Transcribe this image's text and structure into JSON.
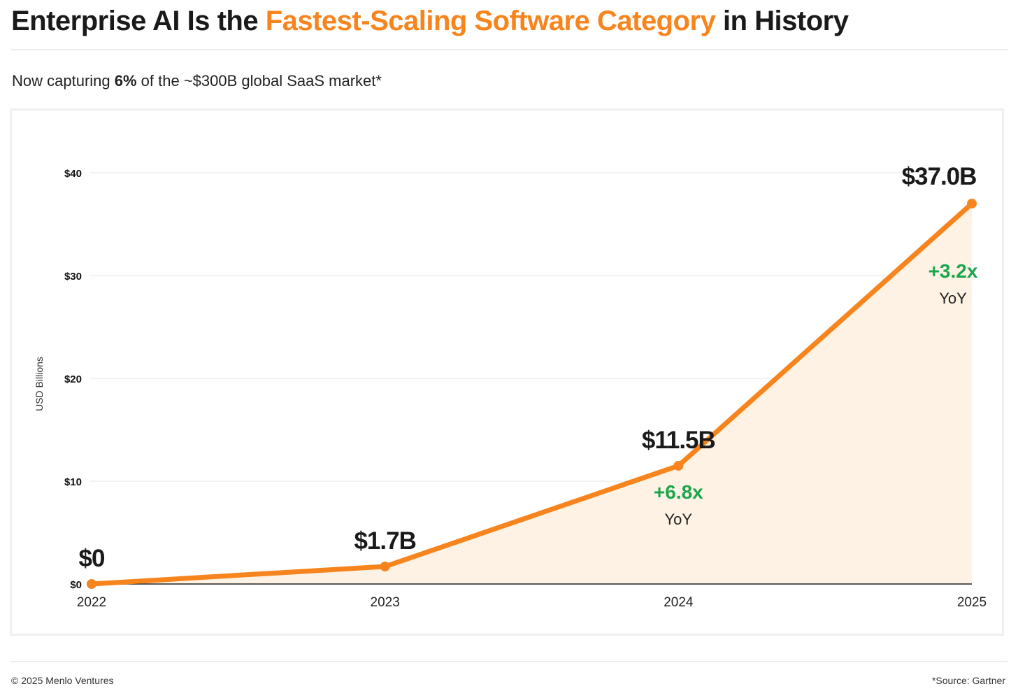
{
  "header": {
    "title_pre": "Enterprise AI Is the ",
    "title_accent": "Fastest-Scaling Software Category",
    "title_post": " in History",
    "subtitle_pre": "Now capturing ",
    "subtitle_bold": "6%",
    "subtitle_post": " of the ~$300B global SaaS market*"
  },
  "colors": {
    "accent": "#f7841c",
    "growth": "#1aa64b",
    "area": "#fdf2e4",
    "grid": "#eeeeee",
    "axis": "#222222"
  },
  "chart_data": {
    "type": "area",
    "title": "",
    "xlabel": "",
    "ylabel": "USD Billions",
    "categories": [
      "2022",
      "2023",
      "2024",
      "2025"
    ],
    "values": [
      0,
      1.7,
      11.5,
      37.0
    ],
    "ylim": [
      0,
      40
    ],
    "yticks": [
      0,
      10,
      20,
      30,
      40
    ],
    "ytick_labels": [
      "$0",
      "$10",
      "$20",
      "$30",
      "$40"
    ],
    "grid": true,
    "data_labels": [
      "$0",
      "$1.7B",
      "$11.5B",
      "$37.0B"
    ],
    "annotations": [
      {
        "category": "2024",
        "growth": "+6.8x",
        "period": "YoY"
      },
      {
        "category": "2025",
        "growth": "+3.2x",
        "period": "YoY"
      }
    ]
  },
  "footer": {
    "copyright": "© 2025 Menlo Ventures",
    "source": "*Source: Gartner"
  }
}
